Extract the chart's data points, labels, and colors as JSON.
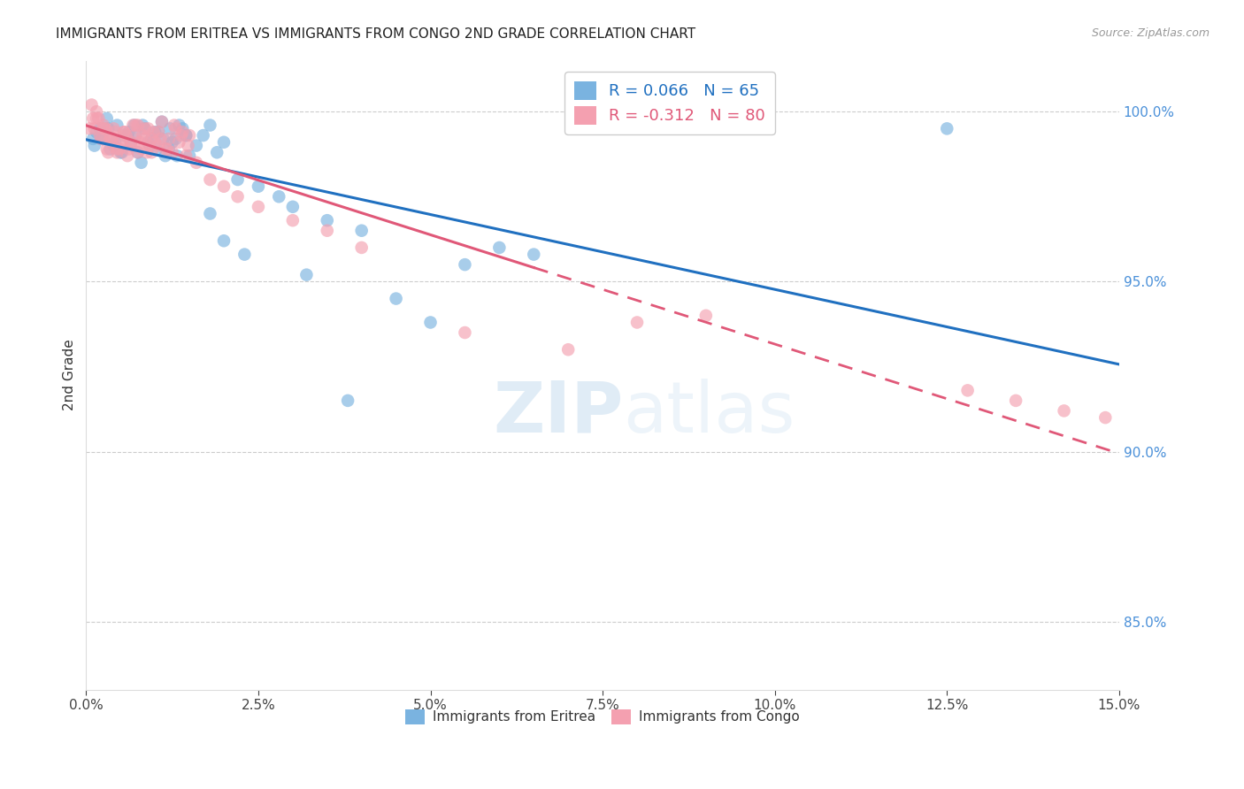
{
  "title": "IMMIGRANTS FROM ERITREA VS IMMIGRANTS FROM CONGO 2ND GRADE CORRELATION CHART",
  "source": "Source: ZipAtlas.com",
  "ylabel": "2nd Grade",
  "r_eritrea": 0.066,
  "n_eritrea": 65,
  "r_congo": -0.312,
  "n_congo": 80,
  "color_eritrea": "#7ab3e0",
  "color_congo": "#f4a0b0",
  "trendline_eritrea": "#2070c0",
  "trendline_congo": "#e05878",
  "xmin": 0.0,
  "xmax": 15.0,
  "ymin": 83.0,
  "ymax": 101.5,
  "yticks": [
    85.0,
    90.0,
    95.0,
    100.0
  ],
  "watermark_zip": "ZIP",
  "watermark_atlas": "atlas",
  "eritrea_x": [
    0.1,
    0.15,
    0.2,
    0.25,
    0.3,
    0.35,
    0.4,
    0.45,
    0.5,
    0.55,
    0.6,
    0.65,
    0.7,
    0.75,
    0.8,
    0.85,
    0.9,
    0.95,
    1.0,
    1.05,
    1.1,
    1.15,
    1.2,
    1.25,
    1.3,
    1.35,
    1.4,
    1.45,
    1.5,
    1.6,
    1.7,
    1.8,
    1.9,
    2.0,
    0.12,
    0.22,
    0.32,
    0.42,
    0.52,
    0.62,
    0.72,
    0.82,
    0.92,
    1.02,
    1.12,
    1.22,
    1.32,
    2.5,
    3.0,
    3.5,
    4.0,
    5.5,
    6.0,
    6.5,
    12.5,
    2.2,
    2.8,
    3.2,
    4.5,
    3.8,
    2.3,
    1.8,
    5.0,
    2.0,
    1.45
  ],
  "eritrea_y": [
    99.2,
    99.4,
    99.5,
    99.2,
    99.8,
    98.9,
    99.0,
    99.6,
    98.8,
    99.3,
    99.3,
    99.1,
    99.6,
    98.8,
    98.5,
    99.5,
    99.1,
    99.2,
    99.4,
    99.4,
    99.7,
    98.7,
    98.9,
    99.1,
    99.2,
    99.6,
    99.5,
    99.3,
    98.7,
    99.0,
    99.3,
    99.6,
    98.8,
    99.1,
    99.0,
    99.2,
    99.5,
    99.1,
    98.8,
    99.4,
    99.3,
    99.6,
    99.0,
    98.9,
    99.2,
    99.5,
    98.7,
    97.8,
    97.2,
    96.8,
    96.5,
    95.5,
    96.0,
    95.8,
    99.5,
    98.0,
    97.5,
    95.2,
    94.5,
    91.5,
    95.8,
    97.0,
    93.8,
    96.2,
    99.3
  ],
  "congo_x": [
    0.05,
    0.1,
    0.15,
    0.2,
    0.25,
    0.3,
    0.35,
    0.4,
    0.45,
    0.5,
    0.55,
    0.6,
    0.65,
    0.7,
    0.75,
    0.8,
    0.85,
    0.9,
    0.95,
    1.0,
    1.05,
    1.1,
    1.15,
    1.2,
    1.25,
    1.3,
    1.35,
    1.4,
    1.45,
    1.5,
    0.08,
    0.18,
    0.28,
    0.38,
    0.48,
    0.58,
    0.68,
    0.78,
    0.88,
    0.98,
    1.08,
    1.18,
    1.28,
    1.38,
    1.48,
    0.12,
    0.22,
    0.32,
    0.42,
    0.52,
    0.62,
    0.72,
    0.82,
    0.92,
    1.6,
    1.8,
    2.0,
    2.2,
    2.5,
    3.0,
    0.15,
    0.25,
    0.35,
    0.45,
    0.55,
    0.65,
    0.75,
    0.85,
    0.95,
    1.05,
    3.5,
    4.0,
    5.5,
    7.0,
    8.0,
    9.0,
    12.8,
    13.5,
    14.2,
    14.8
  ],
  "congo_y": [
    99.5,
    99.8,
    100.0,
    99.3,
    99.6,
    98.9,
    99.2,
    99.5,
    98.8,
    99.1,
    99.4,
    98.7,
    99.0,
    99.3,
    99.6,
    98.9,
    99.2,
    99.5,
    98.8,
    99.1,
    99.4,
    99.7,
    98.9,
    99.2,
    98.8,
    99.5,
    99.1,
    99.4,
    98.7,
    99.3,
    100.2,
    99.8,
    99.5,
    99.2,
    98.9,
    99.3,
    99.6,
    99.1,
    98.8,
    99.4,
    99.2,
    98.9,
    99.6,
    99.3,
    99.0,
    99.5,
    99.2,
    98.8,
    99.4,
    99.1,
    98.9,
    99.6,
    99.3,
    99.0,
    98.5,
    98.0,
    97.8,
    97.5,
    97.2,
    96.8,
    99.8,
    99.5,
    99.2,
    98.9,
    99.4,
    99.1,
    98.8,
    99.5,
    99.2,
    99.0,
    96.5,
    96.0,
    93.5,
    93.0,
    93.8,
    94.0,
    91.8,
    91.5,
    91.2,
    91.0
  ]
}
